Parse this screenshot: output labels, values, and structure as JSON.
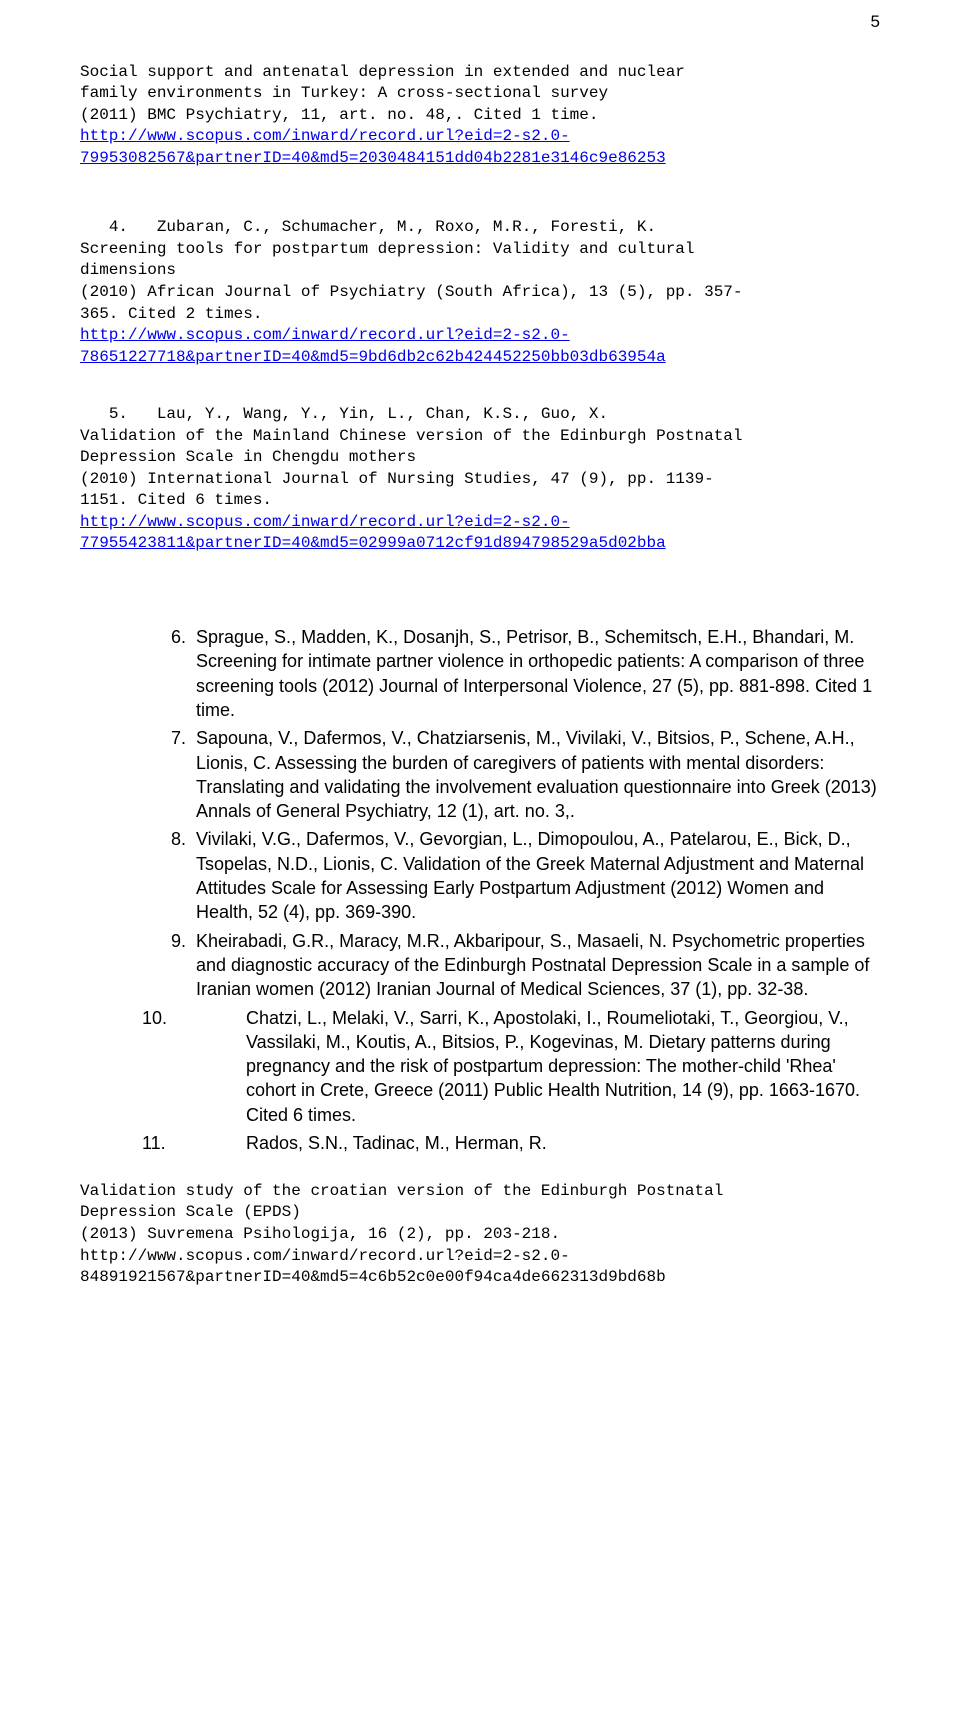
{
  "page_number": "5",
  "mono_block_1": {
    "title_line1": "Social support and antenatal depression in extended and nuclear",
    "title_line2": "family environments in Turkey: A cross-sectional survey",
    "citation": "(2011) BMC Psychiatry, 11, art. no. 48,. Cited 1 time.",
    "url_line1": "http://www.scopus.com/inward/record.url?eid=2-s2.0-",
    "url_line2": "79953082567&partnerID=40&md5=2030484151dd04b2281e3146c9e86253"
  },
  "mono_block_2": {
    "num": "4.",
    "authors": "Zubaran, C., Schumacher, M., Roxo, M.R., Foresti, K.",
    "title_line1": "Screening tools for postpartum depression: Validity and cultural",
    "title_line2": "dimensions",
    "citation_line1": "(2010) African Journal of Psychiatry (South Africa), 13 (5), pp. 357-",
    "citation_line2": "365. Cited 2 times.",
    "url_line1": "http://www.scopus.com/inward/record.url?eid=2-s2.0-",
    "url_line2": "78651227718&partnerID=40&md5=9bd6db2c62b424452250bb03db63954a"
  },
  "mono_block_3": {
    "num": "5.",
    "authors": "Lau, Y., Wang, Y., Yin, L., Chan, K.S., Guo, X.",
    "title_line1": "Validation of the Mainland Chinese version of the Edinburgh Postnatal",
    "title_line2": "Depression Scale in Chengdu mothers",
    "citation_line1": "(2010) International Journal of Nursing Studies, 47 (9), pp. 1139-",
    "citation_line2": "1151. Cited 6 times.",
    "url_line1": "http://www.scopus.com/inward/record.url?eid=2-s2.0-",
    "url_line2": "77955423811&partnerID=40&md5=02999a0712cf91d894798529a5d02bba"
  },
  "sans_items": [
    {
      "num": "6.",
      "text": "Sprague, S., Madden, K., Dosanjh, S., Petrisor, B., Schemitsch, E.H., Bhandari, M. Screening for intimate partner violence in orthopedic patients: A comparison of three screening tools (2012) Journal of Interpersonal Violence, 27 (5), pp. 881-898. Cited 1 time."
    },
    {
      "num": "7.",
      "text": "Sapouna, V., Dafermos, V., Chatziarsenis, M., Vivilaki, V., Bitsios, P., Schene, A.H., Lionis, C. Assessing the burden of caregivers of patients with mental disorders: Translating and validating the involvement evaluation questionnaire into Greek (2013) Annals of General Psychiatry, 12 (1), art. no. 3,."
    },
    {
      "num": "8.",
      "text": "Vivilaki, V.G., Dafermos, V., Gevorgian, L., Dimopoulou, A., Patelarou, E., Bick, D., Tsopelas, N.D., Lionis, C. Validation of the Greek Maternal Adjustment and Maternal Attitudes Scale for Assessing Early Postpartum Adjustment (2012) Women and Health, 52 (4), pp. 369-390."
    },
    {
      "num": "9.",
      "text": "Kheirabadi, G.R., Maracy, M.R., Akbaripour, S., Masaeli, N. Psychometric properties and diagnostic accuracy of the Edinburgh Postnatal Depression Scale in a sample of Iranian women (2012) Iranian Journal of Medical Sciences, 37 (1), pp. 32-38."
    },
    {
      "num": "10.",
      "wide": true,
      "text": "Chatzi, L., Melaki, V., Sarri, K., Apostolaki, I., Roumeliotaki, T., Georgiou, V., Vassilaki, M., Koutis, A., Bitsios, P., Kogevinas, M. Dietary patterns during pregnancy and the risk of postpartum depression: The mother-child 'Rhea' cohort in Crete, Greece (2011) Public Health Nutrition, 14 (9), pp. 1663-1670. Cited 6 times."
    },
    {
      "num": "11.",
      "wide": true,
      "text": "Rados, S.N., Tadinac, M., Herman, R."
    }
  ],
  "mono_block_4": {
    "title_line1": "Validation study of the croatian version of the Edinburgh Postnatal",
    "title_line2": "Depression Scale (EPDS)",
    "citation": "(2013) Suvremena Psihologija, 16 (2), pp. 203-218.",
    "url_line1": "http://www.scopus.com/inward/record.url?eid=2-s2.0-",
    "url_line2": "84891921567&partnerID=40&md5=4c6b52c0e00f94ca4de662313d9bd68b"
  }
}
